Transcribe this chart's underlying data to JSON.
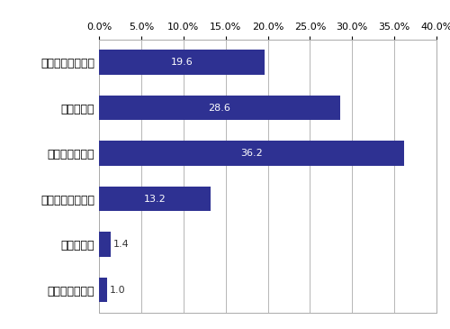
{
  "categories": [
    "非常に脅威である",
    "脅威である",
    "やや脅威である",
    "あまり脅威でない",
    "脅威でない",
    "全く脅威でない"
  ],
  "values": [
    19.6,
    28.6,
    36.2,
    13.2,
    1.4,
    1.0
  ],
  "bar_color": "#2E3192",
  "label_color": "#FFFFFF",
  "label_dark_color": "#333333",
  "xlim": [
    0,
    40
  ],
  "xticks": [
    0,
    5,
    10,
    15,
    20,
    25,
    30,
    35,
    40
  ],
  "xtick_labels": [
    "0.0%",
    "5.0%",
    "10.0%",
    "15.0%",
    "20.0%",
    "25.0%",
    "30.0%",
    "35.0%",
    "40.0%"
  ],
  "background_color": "#FFFFFF",
  "grid_color": "#AAAAAA",
  "ytick_fontsize": 9,
  "xtick_fontsize": 8,
  "bar_label_fontsize": 8,
  "bar_height": 0.55
}
